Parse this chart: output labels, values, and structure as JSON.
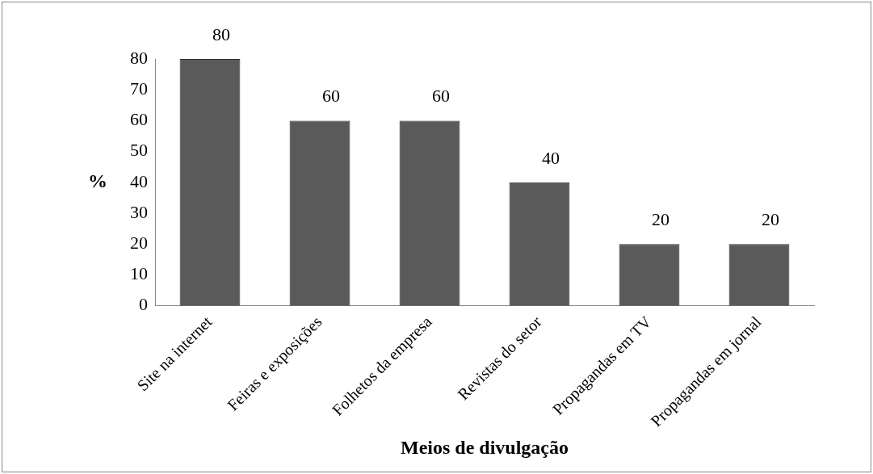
{
  "chart_data": {
    "type": "bar",
    "xlabel": "Meios de divulgação",
    "ylabel": "%",
    "categories": [
      "Site na internet",
      "Feiras e exposições",
      "Folhetos da empresa",
      "Revistas do setor",
      "Propagandas em TV",
      "Propagandas em jornal"
    ],
    "values": [
      80,
      60,
      60,
      40,
      20,
      20
    ],
    "color": "#5a5a5a",
    "ylim": [
      0,
      80
    ],
    "yticks": [
      0,
      10,
      20,
      30,
      40,
      50,
      60,
      70,
      80
    ],
    "grid": false,
    "data_labels": true
  }
}
